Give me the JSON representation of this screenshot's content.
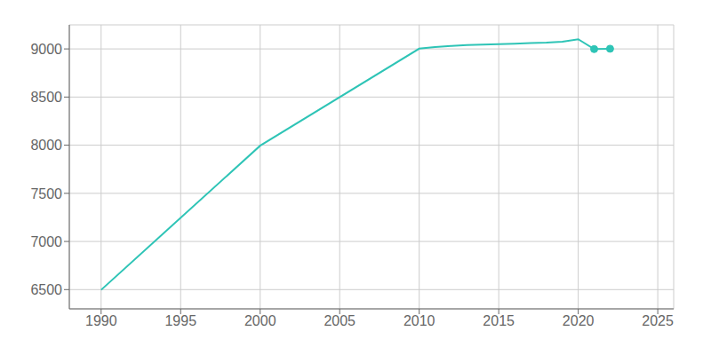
{
  "chart_data": {
    "type": "line",
    "x": [
      1990,
      2000,
      2010,
      2011,
      2012,
      2013,
      2014,
      2015,
      2016,
      2017,
      2018,
      2019,
      2020,
      2021,
      2022
    ],
    "series": [
      {
        "type": "line",
        "color": "#2ec4b6",
        "values": [
          6497,
          7995,
          9003,
          9020,
          9030,
          9040,
          9045,
          9050,
          9055,
          9060,
          9065,
          9075,
          9100,
          8998,
          9002
        ]
      },
      {
        "type": "scatter",
        "marker": "circle",
        "color": "#2ec4b6",
        "values": [
          null,
          null,
          null,
          null,
          null,
          null,
          null,
          null,
          null,
          null,
          null,
          null,
          null,
          8998,
          9002
        ]
      }
    ],
    "xlim": [
      1988,
      2026
    ],
    "xticks": [
      1990,
      1995,
      2000,
      2005,
      2010,
      2015,
      2020,
      2025
    ],
    "ylim": [
      6300,
      9250
    ],
    "yticks": [
      6500,
      7000,
      7500,
      8000,
      8500,
      9000
    ],
    "grid": true
  }
}
